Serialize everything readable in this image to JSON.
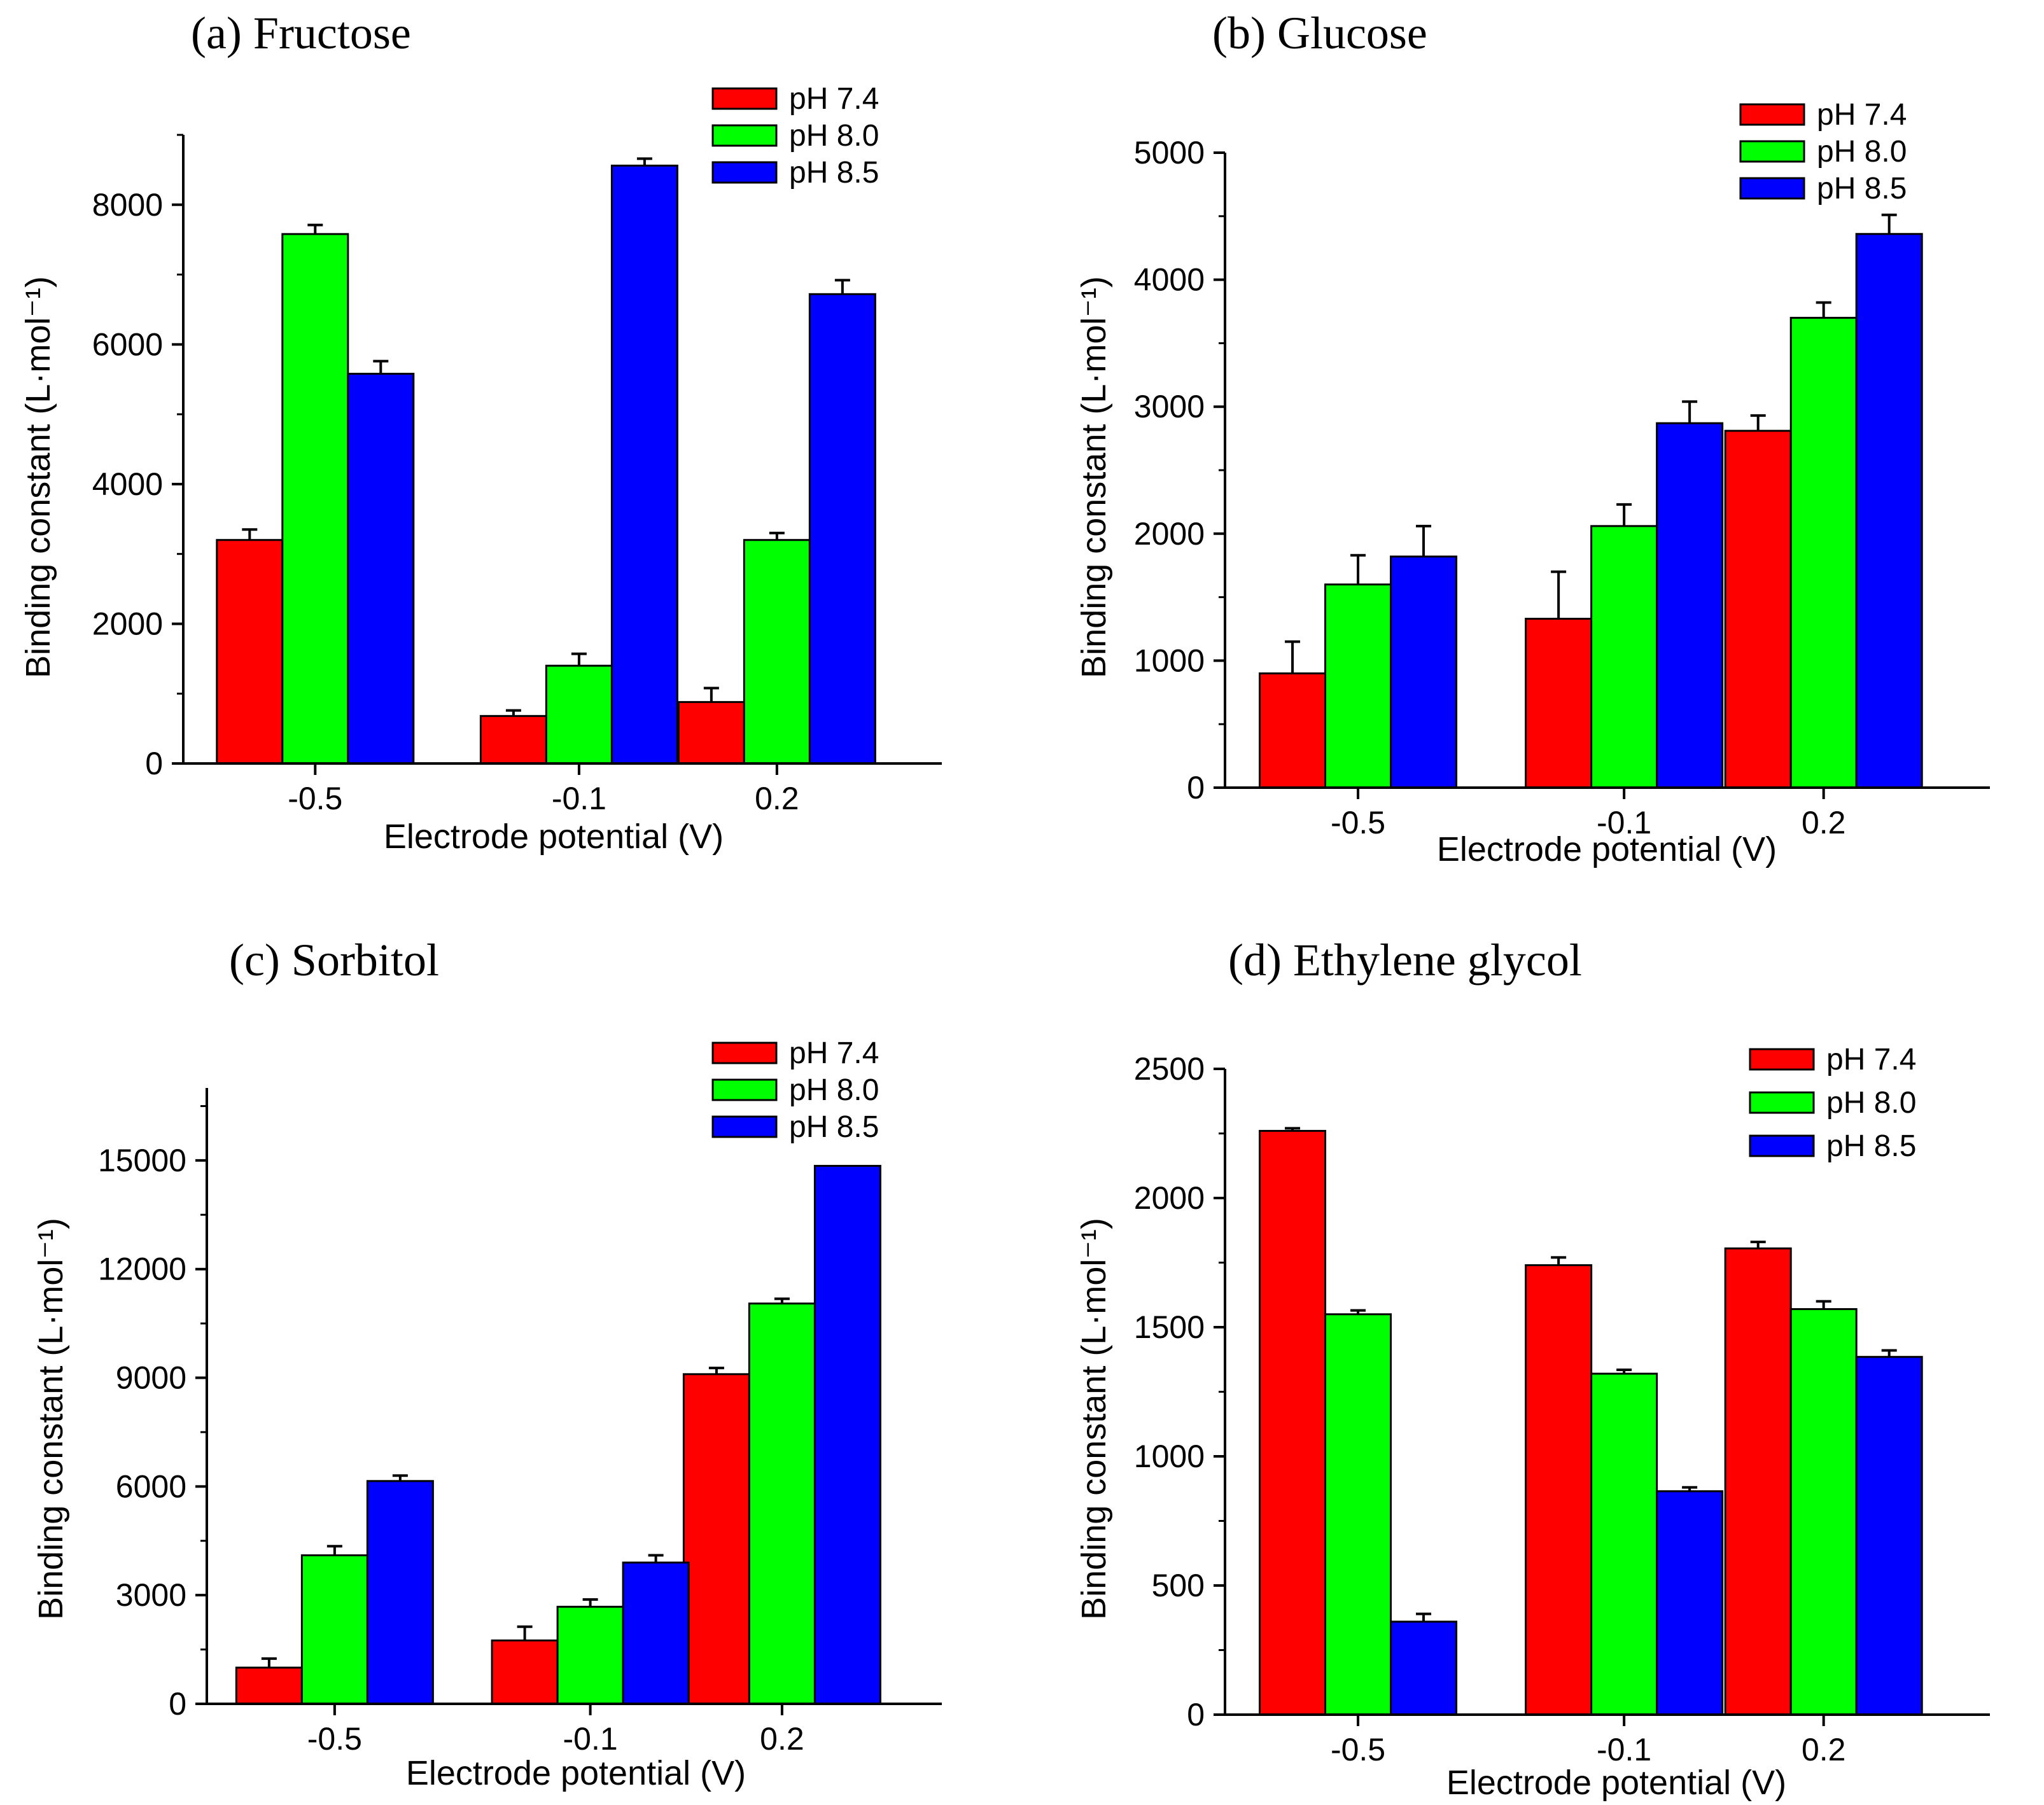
{
  "figure": {
    "series_colors": [
      "#ff0000",
      "#00ff00",
      "#0000ff"
    ]
  },
  "chart_data": [
    {
      "type": "bar",
      "title": "(a)  Fructose",
      "xlabel": "Electrode potential (V)",
      "ylabel": "Binding constant (L·mol⁻¹)",
      "categories": [
        "-0.5",
        "-0.1",
        "0.2"
      ],
      "category_values": [
        -0.5,
        -0.1,
        0.2
      ],
      "xlim": [
        -0.7,
        0.45
      ],
      "ylim": [
        0,
        9000
      ],
      "yticks": [
        0,
        2000,
        4000,
        6000,
        8000
      ],
      "legend_position": "top-right",
      "series": [
        {
          "name": "pH 7.4",
          "color": "#ff0000",
          "values": [
            3200,
            680,
            880
          ],
          "errors": [
            150,
            80,
            200
          ]
        },
        {
          "name": "pH 8.0",
          "color": "#00ff00",
          "values": [
            7580,
            1400,
            3200
          ],
          "errors": [
            130,
            170,
            100
          ]
        },
        {
          "name": "pH 8.5",
          "color": "#0000ff",
          "values": [
            5580,
            8560,
            6720
          ],
          "errors": [
            180,
            100,
            200
          ]
        }
      ]
    },
    {
      "type": "bar",
      "title": "(b)  Glucose",
      "xlabel": "Electrode potential (V)",
      "ylabel": "Binding constant (L·mol⁻¹)",
      "categories": [
        "-0.5",
        "-0.1",
        "0.2"
      ],
      "category_values": [
        -0.5,
        -0.1,
        0.2
      ],
      "xlim": [
        -0.7,
        0.45
      ],
      "ylim": [
        0,
        5000
      ],
      "yticks": [
        0,
        1000,
        2000,
        3000,
        4000,
        5000
      ],
      "legend_position": "top-right",
      "series": [
        {
          "name": "pH 7.4",
          "color": "#ff0000",
          "values": [
            900,
            1330,
            2810
          ],
          "errors": [
            250,
            370,
            120
          ]
        },
        {
          "name": "pH 8.0",
          "color": "#00ff00",
          "values": [
            1600,
            2060,
            3700
          ],
          "errors": [
            230,
            170,
            120
          ]
        },
        {
          "name": "pH 8.5",
          "color": "#0000ff",
          "values": [
            1820,
            2870,
            4360
          ],
          "errors": [
            240,
            170,
            150
          ]
        }
      ]
    },
    {
      "type": "bar",
      "title": "(c)  Sorbitol",
      "xlabel": "Electrode potential (V)",
      "ylabel": "Binding constant (L·mol⁻¹)",
      "categories": [
        "-0.5",
        "-0.1",
        "0.2"
      ],
      "category_values": [
        -0.5,
        -0.1,
        0.2
      ],
      "xlim": [
        -0.7,
        0.45
      ],
      "ylim": [
        0,
        17000
      ],
      "yticks": [
        0,
        3000,
        6000,
        9000,
        12000,
        15000
      ],
      "legend_position": "top-right",
      "series": [
        {
          "name": "pH 7.4",
          "color": "#ff0000",
          "values": [
            1000,
            1750,
            9100
          ],
          "errors": [
            250,
            380,
            170
          ]
        },
        {
          "name": "pH 8.0",
          "color": "#00ff00",
          "values": [
            4100,
            2680,
            11050
          ],
          "errors": [
            250,
            200,
            130
          ]
        },
        {
          "name": "pH 8.5",
          "color": "#0000ff",
          "values": [
            6150,
            3900,
            14850
          ],
          "errors": [
            150,
            200,
            0
          ]
        }
      ]
    },
    {
      "type": "bar",
      "title": "(d) Ethylene glycol",
      "xlabel": "Electrode potential (V)",
      "ylabel": "Binding constant (L·mol⁻¹)",
      "categories": [
        "-0.5",
        "-0.1",
        "0.2"
      ],
      "category_values": [
        -0.5,
        -0.1,
        0.2
      ],
      "xlim": [
        -0.7,
        0.45
      ],
      "ylim": [
        0,
        2500
      ],
      "yticks": [
        0,
        500,
        1000,
        1500,
        2000,
        2500
      ],
      "legend_position": "top-right",
      "series": [
        {
          "name": "pH 7.4",
          "color": "#ff0000",
          "values": [
            2260,
            1740,
            1805
          ],
          "errors": [
            10,
            30,
            25
          ]
        },
        {
          "name": "pH 8.0",
          "color": "#00ff00",
          "values": [
            1550,
            1320,
            1570
          ],
          "errors": [
            15,
            15,
            30
          ]
        },
        {
          "name": "pH 8.5",
          "color": "#0000ff",
          "values": [
            360,
            865,
            1385
          ],
          "errors": [
            30,
            15,
            25
          ]
        }
      ]
    }
  ]
}
